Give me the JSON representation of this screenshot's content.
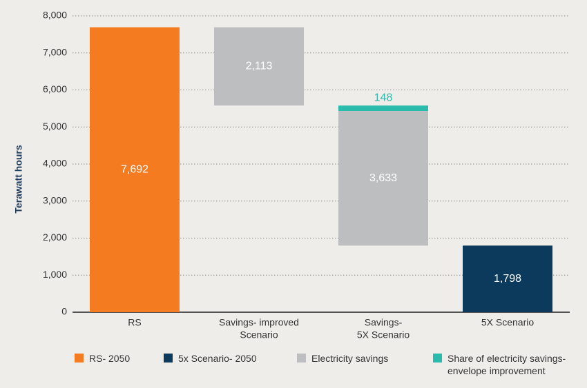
{
  "chart_data": {
    "type": "waterfall",
    "y_label": "Terawatt hours",
    "categories": [
      [
        "RS"
      ],
      [
        "Savings- improved",
        "Scenario"
      ],
      [
        "Savings-",
        "5X Scenario"
      ],
      [
        "5X Scenario"
      ]
    ],
    "series": [
      {
        "name": "RS- 2050",
        "color": "#f47b20",
        "role": "total",
        "label_color": "#ffffff",
        "values": [
          7692,
          null,
          null,
          null
        ],
        "value_labels": [
          "7,692",
          null,
          null,
          null
        ]
      },
      {
        "name": "5x Scenario- 2050",
        "color": "#0b3a5c",
        "role": "total",
        "label_color": "#ffffff",
        "values": [
          null,
          null,
          null,
          1798
        ],
        "value_labels": [
          null,
          null,
          null,
          "1,798"
        ]
      },
      {
        "name": "Electricity savings",
        "color": "#bcbec0",
        "role": "decrease",
        "label_color": "#ffffff",
        "values": [
          null,
          2113,
          3633,
          null
        ],
        "value_labels": [
          null,
          "2,113",
          "3,633",
          null
        ]
      },
      {
        "name": "Share of electricity savings- envelope improvement",
        "color": "#2bbbad",
        "role": "decrease",
        "label_color": "#2bbbad",
        "label_position": "above",
        "values": [
          null,
          null,
          148,
          null
        ],
        "value_labels": [
          null,
          null,
          "148",
          null
        ]
      }
    ],
    "ylim": [
      0,
      8000
    ],
    "yticks": [
      0,
      {
        "value": 1000,
        "label": "1,000"
      },
      {
        "value": 2000,
        "label": "2,000"
      },
      {
        "value": 3000,
        "label": "3,000"
      },
      {
        "value": 4000,
        "label": "4,000"
      },
      {
        "value": 5000,
        "label": "5,000"
      },
      {
        "value": 6000,
        "label": "6,000"
      },
      {
        "value": 7000,
        "label": "7,000"
      },
      {
        "value": 8000,
        "label": "8,000"
      }
    ],
    "grid": true
  }
}
